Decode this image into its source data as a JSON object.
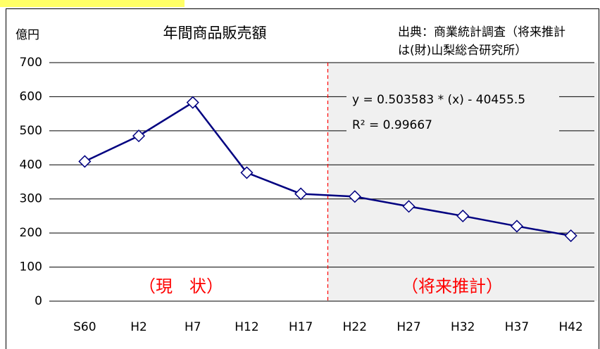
{
  "chart_data": {
    "type": "line",
    "title": "年間商品販売額",
    "y_unit": "億円",
    "source": [
      "出典：商業統計調査（将来推計",
      "は(財)山梨総合研究所）"
    ],
    "annotations": {
      "equation": "y = 0.503583 * (x) - 40455.5",
      "r2": "R² = 0.99667",
      "current": "（現　状）",
      "forecast": "（将来推計）"
    },
    "categories": [
      "S60",
      "H2",
      "H7",
      "H12",
      "H17",
      "H22",
      "H27",
      "H32",
      "H37",
      "H42"
    ],
    "series": [
      {
        "name": "年間商品販売額",
        "color": "#000080",
        "values": [
          410,
          485,
          583,
          377,
          315,
          307,
          278,
          250,
          220,
          192
        ]
      }
    ],
    "shaded_from": "H22",
    "ylim": [
      0,
      700
    ],
    "yticks": [
      0,
      100,
      200,
      300,
      400,
      500,
      600,
      700
    ],
    "grid": true
  }
}
